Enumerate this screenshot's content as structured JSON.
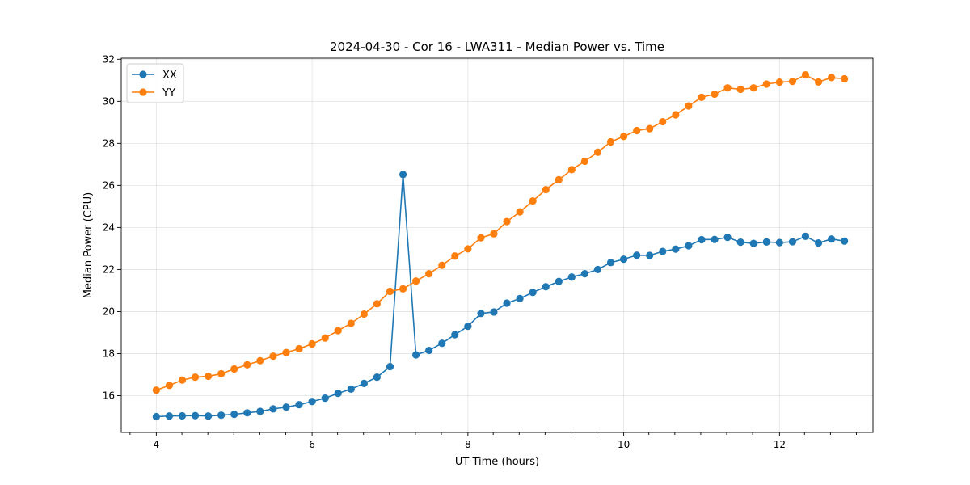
{
  "chart_data": {
    "type": "line",
    "title": "2024-04-30 - Cor 16 - LWA311 - Median Power vs. Time",
    "xlabel": "UT Time (hours)",
    "ylabel": "Median Power (CPU)",
    "xlim": [
      3.55,
      13.2
    ],
    "ylim": [
      14.25,
      32.05
    ],
    "xticks": [
      4,
      6,
      8,
      10,
      12
    ],
    "xtick_labels": [
      "4",
      "6",
      "8",
      "10",
      "12"
    ],
    "yticks": [
      16,
      18,
      20,
      22,
      24,
      26,
      28,
      30,
      32
    ],
    "ytick_labels": [
      "16",
      "18",
      "20",
      "22",
      "24",
      "26",
      "28",
      "30",
      "32"
    ],
    "x_minor_step": 0.333,
    "grid": true,
    "legend_position": "upper-left",
    "x": [
      4.0,
      4.167,
      4.333,
      4.5,
      4.667,
      4.833,
      5.0,
      5.167,
      5.333,
      5.5,
      5.667,
      5.833,
      6.0,
      6.167,
      6.333,
      6.5,
      6.667,
      6.833,
      7.0,
      7.167,
      7.333,
      7.5,
      7.667,
      7.833,
      8.0,
      8.167,
      8.333,
      8.5,
      8.667,
      8.833,
      9.0,
      9.167,
      9.333,
      9.5,
      9.667,
      9.833,
      10.0,
      10.167,
      10.333,
      10.5,
      10.667,
      10.833,
      11.0,
      11.167,
      11.333,
      11.5,
      11.667,
      11.833,
      12.0,
      12.167,
      12.333,
      12.5,
      12.667,
      12.833
    ],
    "series": [
      {
        "name": "XX",
        "color": "#1f77b4",
        "values": [
          15.0,
          15.03,
          15.04,
          15.05,
          15.03,
          15.07,
          15.11,
          15.18,
          15.25,
          15.37,
          15.45,
          15.57,
          15.72,
          15.88,
          16.11,
          16.31,
          16.58,
          16.88,
          17.38,
          26.52,
          17.94,
          18.15,
          18.49,
          18.9,
          19.3,
          19.91,
          19.98,
          20.4,
          20.62,
          20.91,
          21.18,
          21.43,
          21.64,
          21.8,
          22.0,
          22.33,
          22.49,
          22.68,
          22.67,
          22.86,
          22.97,
          23.13,
          23.42,
          23.43,
          23.53,
          23.3,
          23.24,
          23.31,
          23.28,
          23.32,
          23.58,
          23.26,
          23.45,
          23.35
        ]
      },
      {
        "name": "YY",
        "color": "#ff7f0e",
        "values": [
          16.26,
          16.49,
          16.74,
          16.88,
          16.92,
          17.04,
          17.27,
          17.47,
          17.66,
          17.88,
          18.05,
          18.23,
          18.46,
          18.74,
          19.09,
          19.44,
          19.88,
          20.37,
          20.96,
          21.08,
          21.45,
          21.8,
          22.2,
          22.64,
          22.98,
          23.51,
          23.7,
          24.28,
          24.74,
          25.26,
          25.8,
          26.27,
          26.75,
          27.15,
          27.58,
          28.07,
          28.33,
          28.61,
          28.7,
          29.03,
          29.36,
          29.78,
          30.19,
          30.34,
          30.64,
          30.57,
          30.64,
          30.82,
          30.91,
          30.95,
          31.26,
          30.92,
          31.13,
          31.07
        ]
      }
    ]
  }
}
